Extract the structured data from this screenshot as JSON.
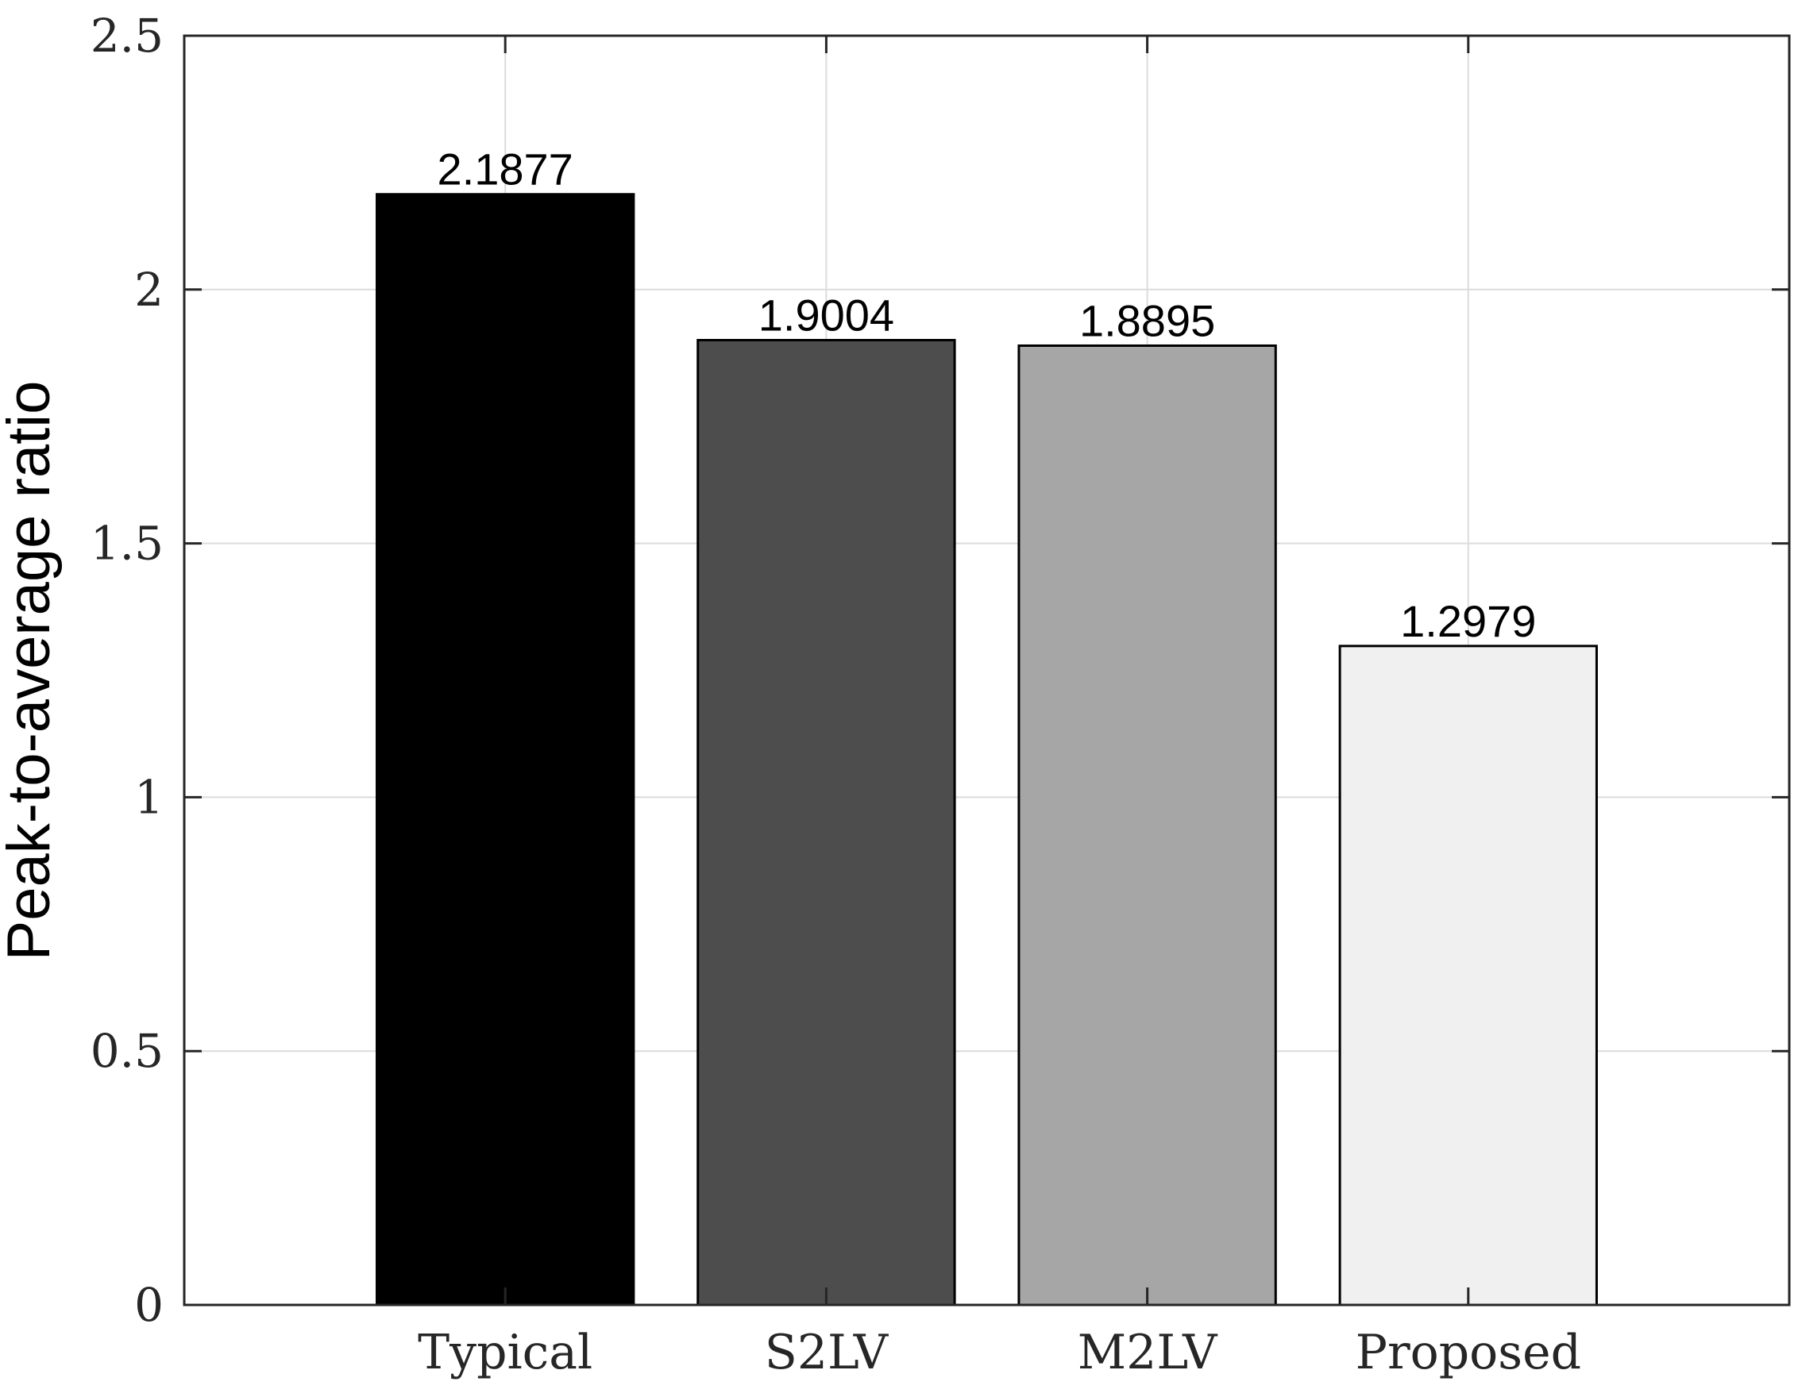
{
  "chart_data": {
    "type": "bar",
    "title": "",
    "xlabel": "",
    "ylabel": "Peak-to-average ratio",
    "categories": [
      "Typical",
      "S2LV",
      "M2LV",
      "Proposed"
    ],
    "values": [
      2.1877,
      1.9004,
      1.8895,
      1.2979
    ],
    "data_labels": [
      "2.1877",
      "1.9004",
      "1.8895",
      "1.2979"
    ],
    "bar_colors": [
      "#000000",
      "#4d4d4d",
      "#a6a6a6",
      "#f0f0f0"
    ],
    "ylim": [
      0,
      2.5
    ],
    "xlim": [
      0,
      5
    ],
    "yticks": [
      0,
      0.5,
      1,
      1.5,
      2,
      2.5
    ],
    "ytick_labels": [
      "0",
      "0.5",
      "1",
      "1.5",
      "2",
      "2.5"
    ],
    "grid": true,
    "box": true
  }
}
